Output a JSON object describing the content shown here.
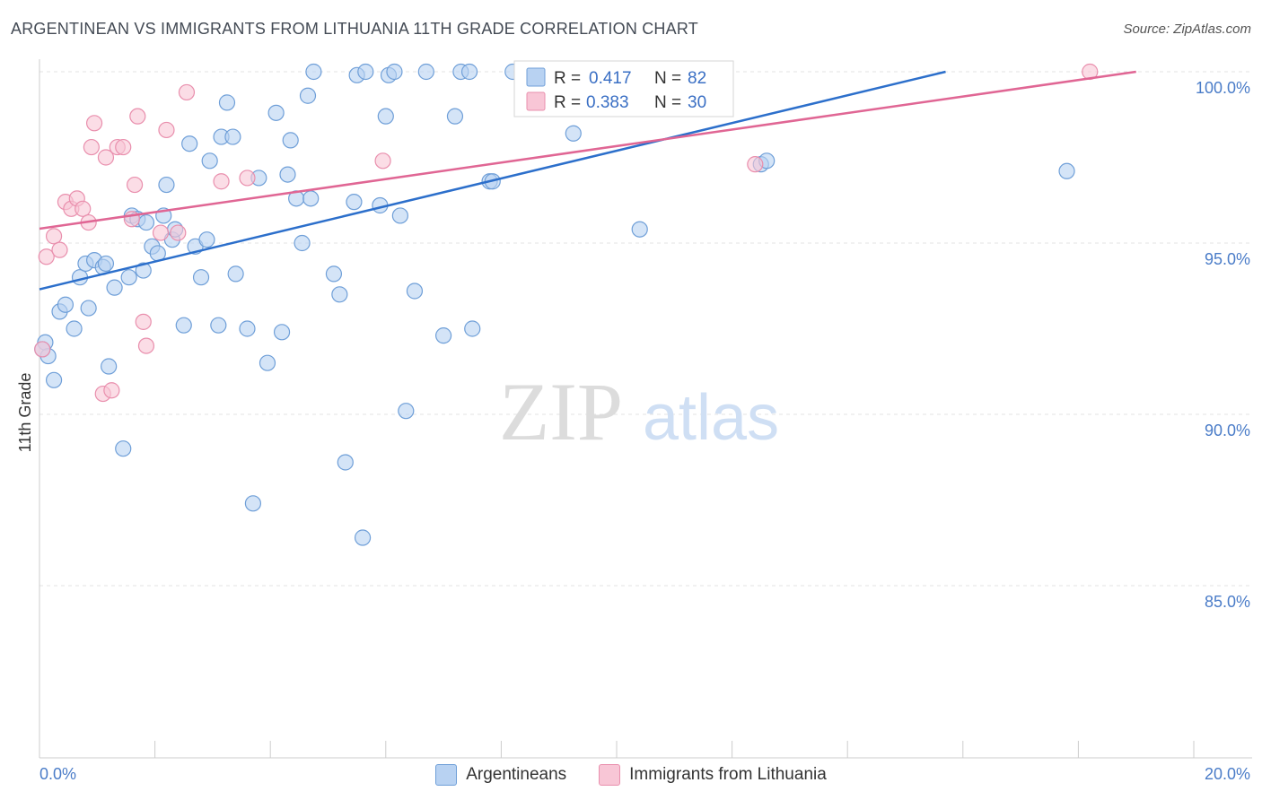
{
  "header": {
    "title": "ARGENTINEAN VS IMMIGRANTS FROM LITHUANIA 11TH GRADE CORRELATION CHART",
    "source": "Source: ZipAtlas.com"
  },
  "watermark": {
    "zip": "ZIP",
    "atlas": "atlas"
  },
  "colors": {
    "blue_fill": "#b8d2f2",
    "blue_stroke": "#6f9fd8",
    "blue_line": "#2c6fcb",
    "pink_fill": "#f8c6d6",
    "pink_stroke": "#e98fad",
    "pink_line": "#e06694"
  },
  "legend": {
    "blue": {
      "r_label": "R = ",
      "r_value": "0.417",
      "n_label": "N = ",
      "n_value": "82"
    },
    "pink": {
      "r_label": "R = ",
      "r_value": "0.383",
      "n_label": "N = ",
      "n_value": "30"
    }
  },
  "chart_data": {
    "type": "scatter",
    "title": "ARGENTINEAN VS IMMIGRANTS FROM LITHUANIA 11TH GRADE CORRELATION CHART",
    "xlabel": "",
    "ylabel": "11th Grade",
    "xlim": [
      0,
      20
    ],
    "ylim": [
      80.5,
      100.3
    ],
    "x_tick_labels": [
      "0.0%",
      "20.0%"
    ],
    "y_ticks": [
      {
        "value": 100,
        "label": "100.0%"
      },
      {
        "value": 95,
        "label": "95.0%"
      },
      {
        "value": 90,
        "label": "90.0%"
      },
      {
        "value": 85,
        "label": "85.0%"
      }
    ],
    "grid": true,
    "series": [
      {
        "name": "Argentineans",
        "color": "blue",
        "R": 0.417,
        "N": 82,
        "trend": {
          "x0": 0,
          "y0": 93.65,
          "x1": 15.7,
          "y1": 100.0
        },
        "points": [
          [
            0.1,
            92.1
          ],
          [
            0.15,
            91.7
          ],
          [
            0.25,
            91.0
          ],
          [
            0.35,
            93.0
          ],
          [
            0.45,
            93.2
          ],
          [
            0.6,
            92.5
          ],
          [
            0.7,
            94.0
          ],
          [
            0.8,
            94.4
          ],
          [
            0.85,
            93.1
          ],
          [
            0.95,
            94.5
          ],
          [
            1.1,
            94.3
          ],
          [
            1.15,
            94.4
          ],
          [
            1.2,
            91.4
          ],
          [
            1.3,
            93.7
          ],
          [
            1.45,
            89.0
          ],
          [
            1.55,
            94.0
          ],
          [
            1.6,
            95.8
          ],
          [
            1.7,
            95.7
          ],
          [
            1.8,
            94.2
          ],
          [
            1.85,
            95.6
          ],
          [
            1.95,
            94.9
          ],
          [
            2.05,
            94.7
          ],
          [
            2.15,
            95.8
          ],
          [
            2.2,
            96.7
          ],
          [
            2.3,
            95.1
          ],
          [
            2.35,
            95.4
          ],
          [
            2.5,
            92.6
          ],
          [
            2.6,
            97.9
          ],
          [
            2.7,
            94.9
          ],
          [
            2.8,
            94.0
          ],
          [
            2.9,
            95.1
          ],
          [
            2.95,
            97.4
          ],
          [
            3.1,
            92.6
          ],
          [
            3.15,
            98.1
          ],
          [
            3.25,
            99.1
          ],
          [
            3.35,
            98.1
          ],
          [
            3.4,
            94.1
          ],
          [
            3.6,
            92.5
          ],
          [
            3.7,
            87.4
          ],
          [
            3.8,
            96.9
          ],
          [
            3.95,
            91.5
          ],
          [
            4.1,
            98.8
          ],
          [
            4.2,
            92.4
          ],
          [
            4.3,
            97.0
          ],
          [
            4.35,
            98.0
          ],
          [
            4.45,
            96.3
          ],
          [
            4.55,
            95.0
          ],
          [
            4.65,
            99.3
          ],
          [
            4.7,
            96.3
          ],
          [
            4.75,
            100.0
          ],
          [
            5.1,
            94.1
          ],
          [
            5.2,
            93.5
          ],
          [
            5.3,
            88.6
          ],
          [
            5.45,
            96.2
          ],
          [
            5.5,
            99.9
          ],
          [
            5.6,
            86.4
          ],
          [
            5.65,
            100.0
          ],
          [
            5.9,
            96.1
          ],
          [
            6.0,
            98.7
          ],
          [
            6.05,
            99.9
          ],
          [
            6.15,
            100.0
          ],
          [
            6.25,
            95.8
          ],
          [
            6.35,
            90.1
          ],
          [
            6.5,
            93.6
          ],
          [
            6.7,
            100.0
          ],
          [
            7.0,
            92.3
          ],
          [
            7.2,
            98.7
          ],
          [
            7.3,
            100.0
          ],
          [
            7.45,
            100.0
          ],
          [
            7.5,
            92.5
          ],
          [
            7.8,
            96.8
          ],
          [
            7.85,
            96.8
          ],
          [
            8.2,
            100.0
          ],
          [
            8.4,
            100.0
          ],
          [
            9.25,
            98.2
          ],
          [
            9.3,
            100.0
          ],
          [
            9.5,
            100.0
          ],
          [
            10.4,
            95.4
          ],
          [
            12.5,
            97.3
          ],
          [
            12.6,
            97.4
          ],
          [
            17.8,
            97.1
          ],
          [
            0.05,
            91.9
          ]
        ]
      },
      {
        "name": "Immigrants from Lithuania",
        "color": "pink",
        "R": 0.383,
        "N": 30,
        "trend": {
          "x0": 0,
          "y0": 95.42,
          "x1": 19.0,
          "y1": 100.0
        },
        "points": [
          [
            0.05,
            91.9
          ],
          [
            0.12,
            94.6
          ],
          [
            0.25,
            95.2
          ],
          [
            0.35,
            94.8
          ],
          [
            0.45,
            96.2
          ],
          [
            0.55,
            96.0
          ],
          [
            0.65,
            96.3
          ],
          [
            0.75,
            96.0
          ],
          [
            0.85,
            95.6
          ],
          [
            0.9,
            97.8
          ],
          [
            0.95,
            98.5
          ],
          [
            1.15,
            97.5
          ],
          [
            1.1,
            90.6
          ],
          [
            1.25,
            90.7
          ],
          [
            1.35,
            97.8
          ],
          [
            1.45,
            97.8
          ],
          [
            1.6,
            95.7
          ],
          [
            1.65,
            96.7
          ],
          [
            1.7,
            98.7
          ],
          [
            1.8,
            92.7
          ],
          [
            1.85,
            92.0
          ],
          [
            2.1,
            95.3
          ],
          [
            2.2,
            98.3
          ],
          [
            2.4,
            95.3
          ],
          [
            2.55,
            99.4
          ],
          [
            3.15,
            96.8
          ],
          [
            3.6,
            96.9
          ],
          [
            5.95,
            97.4
          ],
          [
            12.4,
            97.3
          ],
          [
            18.2,
            100.0
          ]
        ]
      }
    ]
  },
  "bottom_legend": [
    {
      "label": "Argentineans",
      "color": "blue"
    },
    {
      "label": "Immigrants from Lithuania",
      "color": "pink"
    }
  ]
}
